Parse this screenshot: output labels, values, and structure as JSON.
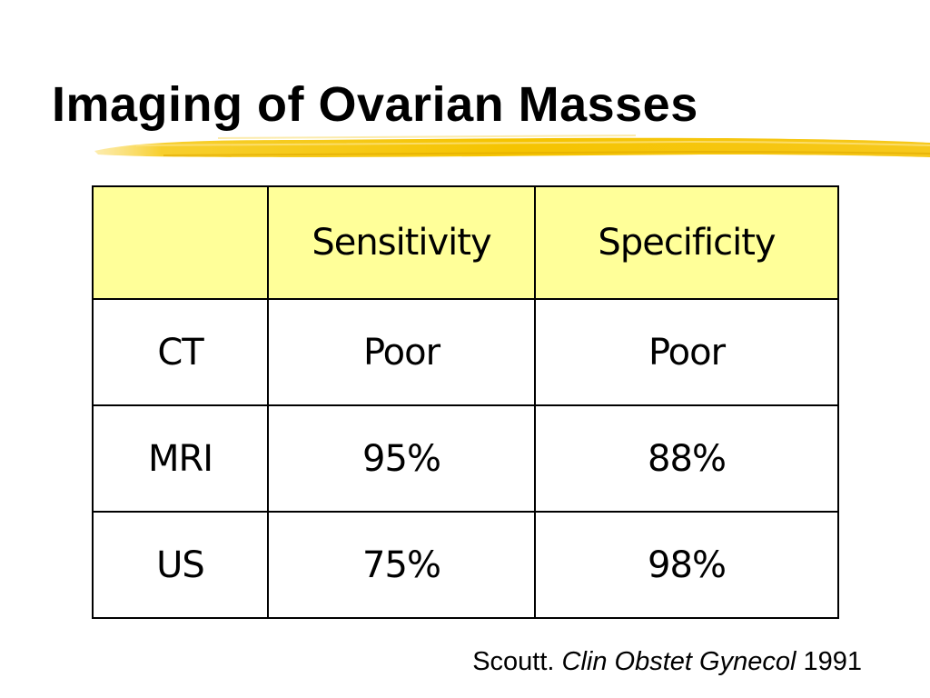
{
  "slide": {
    "title": "Imaging of Ovarian Masses",
    "accent_color": "#f5c400",
    "header_fill_color": "#ffff99"
  },
  "table": {
    "columns": [
      "",
      "Sensitivity",
      "Specificity"
    ],
    "rows": [
      {
        "label": "CT",
        "sensitivity": "Poor",
        "specificity": "Poor"
      },
      {
        "label": "MRI",
        "sensitivity": "95%",
        "specificity": "88%"
      },
      {
        "label": "US",
        "sensitivity": "75%",
        "specificity": "98%"
      }
    ]
  },
  "citation": {
    "author": "Scoutt.",
    "journal": "Clin Obstet Gynecol",
    "year": "1991"
  }
}
